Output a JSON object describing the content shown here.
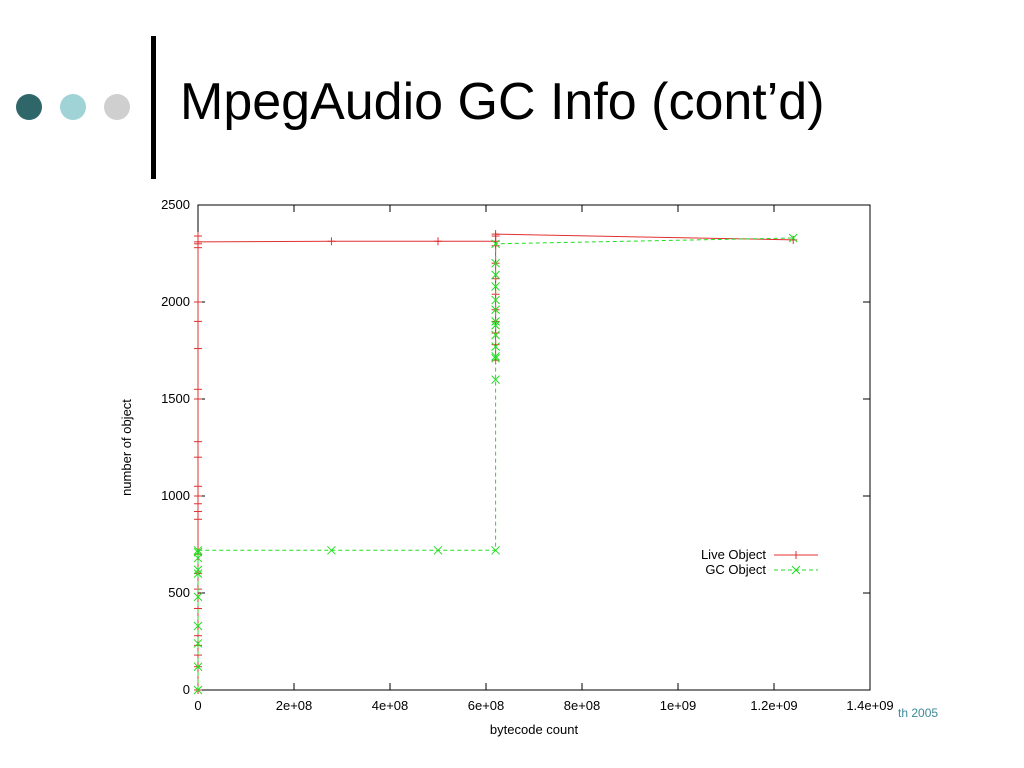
{
  "slide": {
    "title": "MpegAudio GC Info (cont’d)",
    "footer_fragment": "th 2005",
    "dot_colors": [
      "#2e6669",
      "#9fd3d6",
      "#cfcfcf"
    ]
  },
  "chart_data": {
    "type": "line",
    "xlabel": "bytecode count",
    "ylabel": "number of object",
    "xlim": [
      0,
      1400000000
    ],
    "ylim": [
      0,
      2500
    ],
    "x_ticks": [
      0,
      200000000,
      400000000,
      600000000,
      800000000,
      1000000000,
      1200000000,
      1400000000
    ],
    "x_tick_labels": [
      "0",
      "2e+08",
      "4e+08",
      "6e+08",
      "8e+08",
      "1e+09",
      "1.2e+09",
      "1.4e+09"
    ],
    "y_ticks": [
      0,
      500,
      1000,
      1500,
      2000,
      2500
    ],
    "y_tick_labels": [
      "0",
      "500",
      "1000",
      "1500",
      "2000",
      "2500"
    ],
    "grid": false,
    "legend_position": "center-right",
    "series": [
      {
        "name": "Live Object",
        "color": "#e03030",
        "marker": "plus",
        "line_style": "solid",
        "x": [
          0,
          0,
          0,
          0,
          0,
          0,
          0,
          0,
          0,
          0,
          0,
          0,
          0,
          0,
          0,
          0,
          0,
          0,
          0,
          0,
          0,
          0,
          0,
          0,
          0,
          278000000,
          500000000,
          620000000,
          620000000,
          620000000,
          620000000,
          620000000,
          620000000,
          620000000,
          620000000,
          620000000,
          620000000,
          620000000,
          620000000,
          1240000000
        ],
        "y": [
          0,
          120,
          180,
          230,
          280,
          420,
          520,
          600,
          700,
          880,
          920,
          960,
          1000,
          1050,
          1200,
          1280,
          1500,
          1550,
          1760,
          1900,
          2000,
          2280,
          2300,
          2340,
          2310,
          2313,
          2313,
          2313,
          1700,
          1780,
          1840,
          1900,
          1960,
          2040,
          2120,
          2200,
          2290,
          2340,
          2350,
          2320
        ]
      },
      {
        "name": "GC Object",
        "color": "#22dd22",
        "marker": "x",
        "line_style": "dashed",
        "x": [
          0,
          0,
          0,
          0,
          0,
          0,
          0,
          0,
          0,
          0,
          278000000,
          500000000,
          620000000,
          620000000,
          620000000,
          620000000,
          620000000,
          620000000,
          620000000,
          620000000,
          620000000,
          620000000,
          620000000,
          620000000,
          620000000,
          620000000,
          1240000000
        ],
        "y": [
          0,
          120,
          240,
          330,
          480,
          600,
          620,
          680,
          710,
          720,
          720,
          720,
          720,
          1600,
          1710,
          1720,
          1770,
          1830,
          1880,
          1900,
          1960,
          2010,
          2080,
          2140,
          2200,
          2300,
          2330
        ]
      }
    ]
  }
}
